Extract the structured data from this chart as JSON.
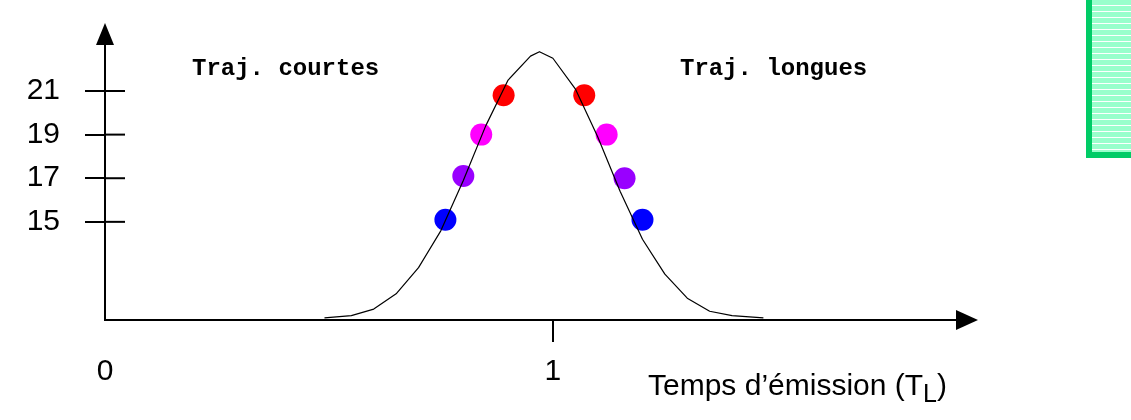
{
  "chart_data": {
    "type": "scatter",
    "xlabel": "Temps d’émission (T$_{L}$)",
    "xlim": [
      0,
      1.9
    ],
    "ylim": [
      10.5,
      23.2
    ],
    "xticks": [
      0,
      1
    ],
    "yticks": [
      15,
      17,
      19,
      21
    ],
    "grid": false,
    "legend": false,
    "annotations": [
      "Traj. courtes",
      "Traj. longues"
    ],
    "series": [
      {
        "type": "line",
        "color": "#000000",
        "marker": "none",
        "x": [
          0.49,
          0.55,
          0.6,
          0.65,
          0.7,
          0.75,
          0.8,
          0.85,
          0.9,
          0.95,
          0.97,
          1.0,
          1.05,
          1.1,
          1.15,
          1.2,
          1.25,
          1.3,
          1.35,
          1.4,
          1.47
        ],
        "values": [
          10.6,
          10.7,
          11.0,
          11.7,
          12.9,
          14.6,
          16.9,
          19.4,
          21.5,
          22.6,
          22.8,
          22.5,
          21.1,
          18.9,
          16.4,
          14.2,
          12.6,
          11.5,
          10.9,
          10.7,
          10.6
        ]
      },
      {
        "marker": "circle",
        "x": [
          0.76,
          0.8,
          0.84,
          0.89,
          1.07,
          1.12,
          1.16,
          1.2
        ],
        "values": [
          15.1,
          17.1,
          19.0,
          20.8,
          20.8,
          19.0,
          17.0,
          15.1
        ],
        "colors": [
          "#0000ff",
          "#9900ff",
          "#ff00ff",
          "#ff0000",
          "#ff0000",
          "#ff00ff",
          "#9900ff",
          "#0000ff"
        ]
      }
    ]
  }
}
